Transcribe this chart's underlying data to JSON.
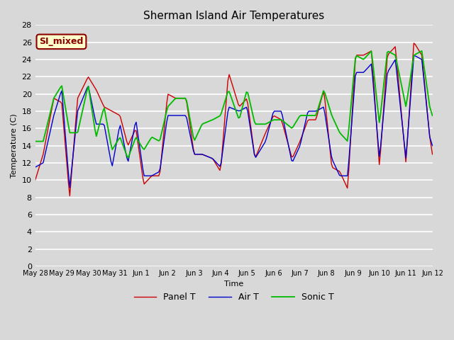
{
  "title": "Sherman Island Air Temperatures",
  "xlabel": "Time",
  "ylabel": "Temperature (C)",
  "ylim": [
    0,
    28
  ],
  "yticks": [
    0,
    2,
    4,
    6,
    8,
    10,
    12,
    14,
    16,
    18,
    20,
    22,
    24,
    26,
    28
  ],
  "background_color": "#d8d8d8",
  "plot_bg_color": "#d8d8d8",
  "grid_color": "#ffffff",
  "label_box_text": "SI_mixed",
  "label_box_facecolor": "#ffffcc",
  "label_box_edgecolor": "#8b0000",
  "label_box_textcolor": "#8b0000",
  "line_panel_color": "#cc0000",
  "line_air_color": "#0000cc",
  "line_sonic_color": "#00bb00",
  "legend_labels": [
    "Panel T",
    "Air T",
    "Sonic T"
  ],
  "tick_labels": [
    "May 28",
    "May 29",
    "May 30",
    "May 31",
    "Jun 1",
    "Jun 2",
    "Jun 3",
    "Jun 4",
    "Jun 5",
    "Jun 6",
    "Jun 7",
    "Jun 8",
    "Jun 9",
    "Jun 10",
    "Jun 11",
    "Jun 12"
  ],
  "title_fontsize": 11,
  "axis_fontsize": 8,
  "label_fontsize": 8,
  "lw": 1.0
}
